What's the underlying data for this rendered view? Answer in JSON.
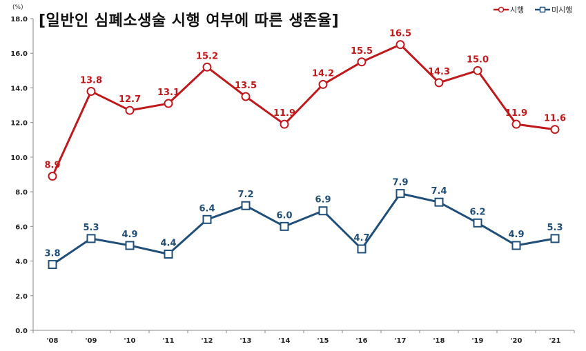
{
  "chart_data": {
    "type": "line",
    "title": "[일반인 심폐소생술 시행 여부에 따른 생존율]",
    "unit": "(%)",
    "categories": [
      "'08",
      "'09",
      "'10",
      "'11",
      "'12",
      "'13",
      "'14",
      "'15",
      "'16",
      "'17",
      "'18",
      "'19",
      "'20",
      "'21"
    ],
    "ylim": [
      0,
      18
    ],
    "yticks": [
      "0.0",
      "2.0",
      "4.0",
      "6.0",
      "8.0",
      "10.0",
      "12.0",
      "14.0",
      "16.0",
      "18.0"
    ],
    "grid": false,
    "legend_position": "top-right",
    "series": [
      {
        "name": "시행",
        "color": "#c0191c",
        "marker": "circle",
        "values": [
          8.9,
          13.8,
          12.7,
          13.1,
          15.2,
          13.5,
          11.9,
          14.2,
          15.5,
          16.5,
          14.3,
          15.0,
          11.9,
          11.6
        ],
        "labels": [
          "8.9",
          "13.8",
          "12.7",
          "13.1",
          "15.2",
          "13.5",
          "11.9",
          "14.2",
          "15.5",
          "16.5",
          "14.3",
          "15.0",
          "11.9",
          "11.6"
        ]
      },
      {
        "name": "미시행",
        "color": "#1f4e79",
        "marker": "square",
        "values": [
          3.8,
          5.3,
          4.9,
          4.4,
          6.4,
          7.2,
          6.0,
          6.9,
          4.7,
          7.9,
          7.4,
          6.2,
          4.9,
          5.3
        ],
        "labels": [
          "3.8",
          "5.3",
          "4.9",
          "4.4",
          "6.4",
          "7.2",
          "6.0",
          "6.9",
          "4.7",
          "7.9",
          "7.4",
          "6.2",
          "4.9",
          "5.3"
        ]
      }
    ]
  }
}
